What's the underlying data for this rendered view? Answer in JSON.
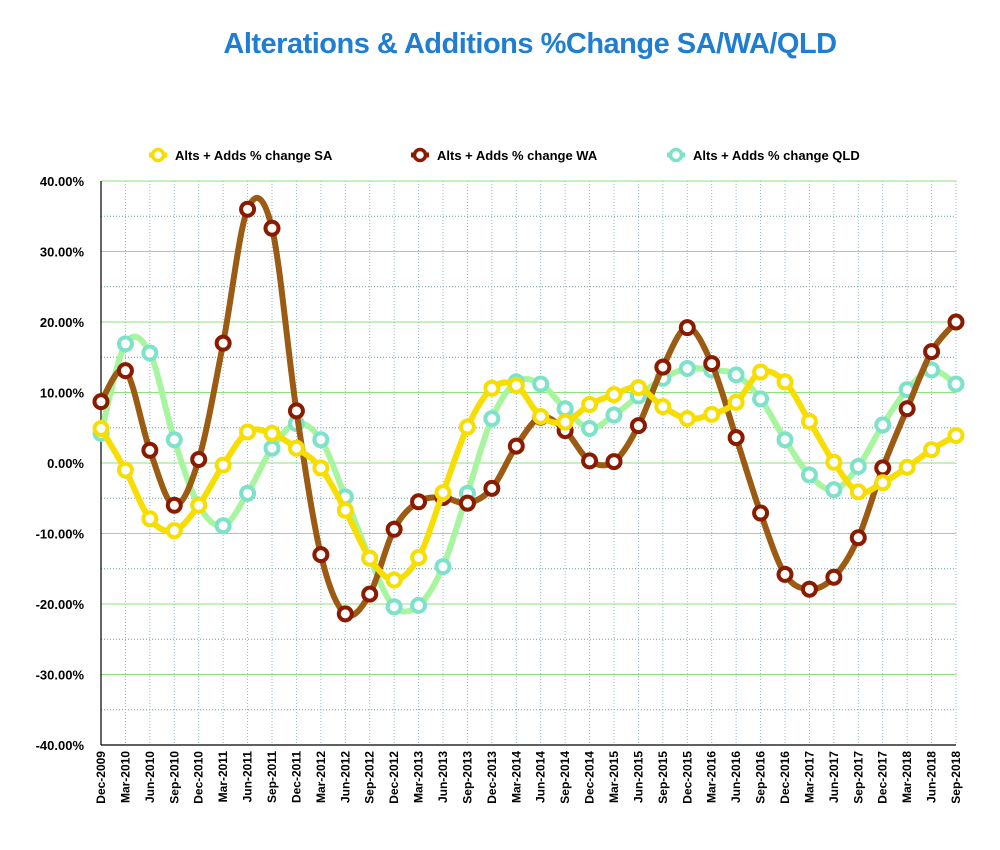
{
  "chart_data": {
    "type": "line",
    "title": "Alterations & Additions %Change SA/WA/QLD",
    "xlabel": "",
    "ylabel": "",
    "ylim": [
      -40,
      40
    ],
    "yticks": [
      40,
      30,
      20,
      10,
      0,
      -10,
      -20,
      -30,
      -40
    ],
    "ytick_labels": [
      "40.00%",
      "30.00%",
      "20.00%",
      "10.00%",
      "0.00%",
      "-10.00%",
      "-20.00%",
      "-30.00%",
      "-40.00%"
    ],
    "grid": true,
    "legend_position": "top",
    "categories": [
      "Dec-2009",
      "Mar-2010",
      "Jun-2010",
      "Sep-2010",
      "Dec-2010",
      "Mar-2011",
      "Jun-2011",
      "Sep-2011",
      "Dec-2011",
      "Mar-2012",
      "Jun-2012",
      "Sep-2012",
      "Dec-2012",
      "Mar-2013",
      "Jun-2013",
      "Sep-2013",
      "Dec-2013",
      "Mar-2014",
      "Jun-2014",
      "Sep-2014",
      "Dec-2014",
      "Mar-2015",
      "Jun-2015",
      "Sep-2015",
      "Dec-2015",
      "Mar-2016",
      "Jun-2016",
      "Sep-2016",
      "Dec-2016",
      "Mar-2017",
      "Jun-2017",
      "Sep-2017",
      "Dec-2017",
      "Mar-2018",
      "Jun-2018",
      "Sep-2018"
    ],
    "series": [
      {
        "name": "Alts + Adds % change QLD",
        "line_color": "#A8F5A0",
        "marker_color": "#7EE2CB",
        "values": [
          4.2,
          16.9,
          15.6,
          3.3,
          -6.0,
          -8.9,
          -4.3,
          2.1,
          5.6,
          3.3,
          -4.8,
          -13.5,
          -20.4,
          -20.2,
          -14.7,
          -4.3,
          6.3,
          11.5,
          11.2,
          7.7,
          4.9,
          6.8,
          9.5,
          12.0,
          13.4,
          13.2,
          12.5,
          9.1,
          3.3,
          -1.7,
          -3.8,
          -0.5,
          5.4,
          10.4,
          13.2,
          11.2
        ]
      },
      {
        "name": "Alts + Adds % change WA",
        "line_color": "#9B5B13",
        "marker_color": "#8B1B00",
        "values": [
          8.7,
          13.1,
          1.8,
          -6.0,
          0.5,
          17.0,
          36.0,
          33.3,
          7.4,
          -13.0,
          -21.4,
          -18.6,
          -9.4,
          -5.5,
          -4.9,
          -5.7,
          -3.6,
          2.4,
          6.5,
          4.6,
          0.3,
          0.2,
          5.3,
          13.6,
          19.2,
          14.1,
          3.6,
          -7.1,
          -15.8,
          -17.9,
          -16.2,
          -10.6,
          -0.7,
          7.7,
          15.8,
          20.0
        ]
      },
      {
        "name": "Alts + Adds % change  SA",
        "line_color": "#F7DD00",
        "marker_color": "#F7DD00",
        "values": [
          4.9,
          -1.0,
          -7.9,
          -9.6,
          -6.0,
          -0.3,
          4.4,
          4.2,
          2.1,
          -0.7,
          -6.7,
          -13.5,
          -16.6,
          -13.4,
          -4.2,
          5.1,
          10.6,
          11.0,
          6.6,
          5.8,
          8.3,
          9.7,
          10.7,
          8.0,
          6.3,
          6.9,
          8.6,
          12.9,
          11.5,
          5.9,
          0.1,
          -4.1,
          -2.8,
          -0.6,
          1.9,
          3.9
        ]
      }
    ],
    "legend": [
      {
        "label": "Alts + Adds % change  SA",
        "color": "#F7DD00"
      },
      {
        "label": "Alts + Adds % change WA",
        "color": "#8B1B00"
      },
      {
        "label": "Alts + Adds % change QLD",
        "color": "#7EE2CB"
      }
    ]
  }
}
